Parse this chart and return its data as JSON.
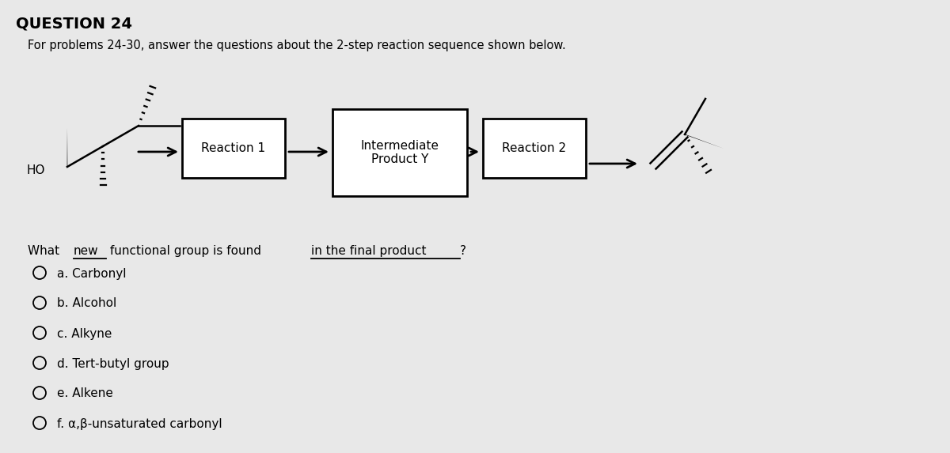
{
  "title": "QUESTION 24",
  "subtitle": "For problems 24-30, answer the questions about the 2-step reaction sequence shown below.",
  "reaction1_label": "Reaction 1",
  "intermediate_label": "Intermediate\nProduct Y",
  "reaction2_label": "Reaction 2",
  "choices": [
    "a. Carbonyl",
    "b. Alcohol",
    "c. Alkyne",
    "d. Tert-butyl group",
    "e. Alkene",
    "f. α,β-unsaturated carbonyl"
  ],
  "bg_color": "#e8e8e8",
  "text_color": "#000000"
}
